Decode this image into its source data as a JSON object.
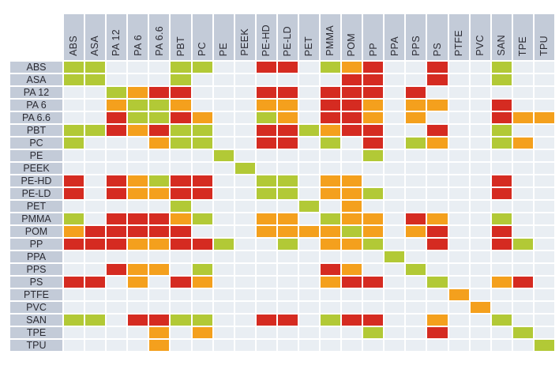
{
  "chart_data": {
    "type": "heatmap",
    "title": "",
    "legend_position": "none",
    "materials": [
      "ABS",
      "ASA",
      "PA 12",
      "PA 6",
      "PA 6.6",
      "PBT",
      "PC",
      "PE",
      "PEEK",
      "PE-HD",
      "PE-LD",
      "PET",
      "PMMA",
      "POM",
      "PP",
      "PPA",
      "PPS",
      "PS",
      "PTFE",
      "PVC",
      "SAN",
      "TPE",
      "TPU"
    ],
    "code_meaning": {
      "G": "green",
      "O": "orange",
      "R": "red",
      ".": "empty"
    },
    "matrix": [
      "GG...GG..RR.GOR..R..G..",
      "GG...G.......RR..R..G..",
      "..GORR...RR.RRR.R......",
      "..OGGO...OO.RRO.OO..R..",
      "..RGGRO..GO.RRO.O...ROO",
      "GGRORGG..RRGORR..R..G..",
      "G...OGG..RR.G.R.GO..GO.",
      ".......G......G........",
      "........G..............",
      "R.ROGRR..GG.OO......R..",
      "R.ROORR..GG.OOG.....R..",
      ".....G.....G.O.........",
      "G.RRROG..OO.GOO.RO..G..",
      "ORRRRR...OOOOGO.OR..R..",
      "RRROORRG..G.OOG..R..RG.",
      "...............G.......",
      "..ROO.G.....RO..G......",
      "RR.O.RO.....ORR..G..OR.",
      "..................O....",
      "...................O...",
      "GG.RRGG..RR.GRR..O..G..",
      "....O.O.......G..R...G.",
      "....O.................G"
    ]
  },
  "colors": {
    "green": "#b2c936",
    "orange": "#f4a01d",
    "red": "#d52b21",
    "empty": "#e9eef3",
    "header_bg": "#c3cbd8",
    "label_text": "#2b2b33"
  }
}
